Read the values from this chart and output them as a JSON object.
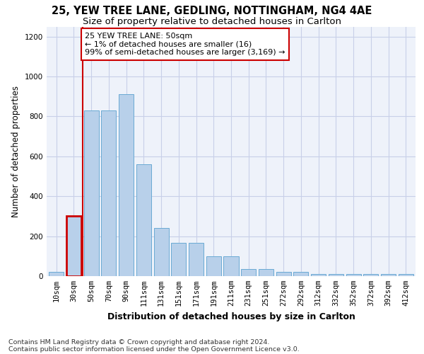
{
  "title1": "25, YEW TREE LANE, GEDLING, NOTTINGHAM, NG4 4AE",
  "title2": "Size of property relative to detached houses in Carlton",
  "xlabel": "Distribution of detached houses by size in Carlton",
  "ylabel": "Number of detached properties",
  "categories": [
    "10sqm",
    "30sqm",
    "50sqm",
    "70sqm",
    "90sqm",
    "111sqm",
    "131sqm",
    "151sqm",
    "171sqm",
    "191sqm",
    "211sqm",
    "231sqm",
    "251sqm",
    "272sqm",
    "292sqm",
    "312sqm",
    "332sqm",
    "352sqm",
    "372sqm",
    "392sqm",
    "412sqm"
  ],
  "values": [
    20,
    300,
    830,
    830,
    910,
    560,
    240,
    165,
    165,
    100,
    100,
    35,
    35,
    20,
    20,
    10,
    10,
    10,
    10,
    10,
    10
  ],
  "bar_color": "#b8d0ea",
  "bar_edge_color": "#6aaad4",
  "highlight_bar_index": 1,
  "highlight_bar_edge_color": "#cc0000",
  "vline_color": "#cc0000",
  "annotation_text": "25 YEW TREE LANE: 50sqm\n← 1% of detached houses are smaller (16)\n99% of semi-detached houses are larger (3,169) →",
  "annotation_box_facecolor": "#ffffff",
  "annotation_box_edgecolor": "#cc0000",
  "ylim": [
    0,
    1250
  ],
  "yticks": [
    0,
    200,
    400,
    600,
    800,
    1000,
    1200
  ],
  "footer1": "Contains HM Land Registry data © Crown copyright and database right 2024.",
  "footer2": "Contains public sector information licensed under the Open Government Licence v3.0.",
  "bg_color": "#eef2fa",
  "grid_color": "#c8cfe8",
  "title1_fontsize": 10.5,
  "title2_fontsize": 9.5,
  "ylabel_fontsize": 8.5,
  "xlabel_fontsize": 9,
  "tick_fontsize": 7.5,
  "footer_fontsize": 6.8,
  "annot_fontsize": 8
}
